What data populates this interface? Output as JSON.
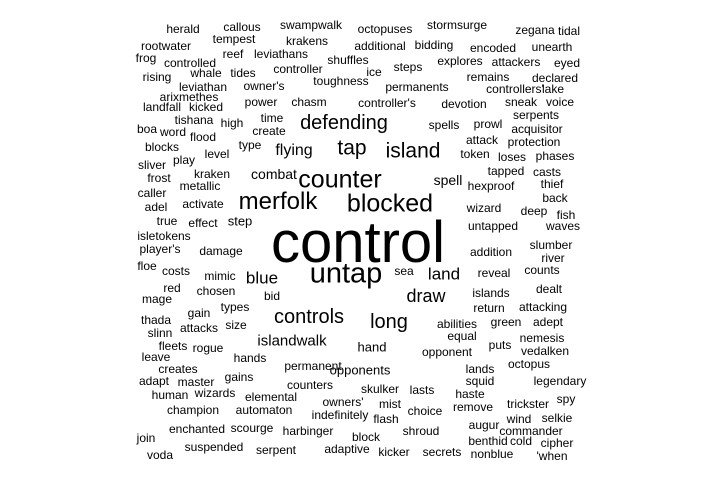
{
  "word_cloud": {
    "text_color": "#000000",
    "background_color": "#ffffff",
    "words": [
      {
        "text": "control",
        "weight": 1.0
      },
      {
        "text": "untap",
        "weight": 0.58
      },
      {
        "text": "counter",
        "weight": 0.5
      },
      {
        "text": "blocked",
        "weight": 0.5
      },
      {
        "text": "merfolk",
        "weight": 0.48
      },
      {
        "text": "island",
        "weight": 0.42
      },
      {
        "text": "tap",
        "weight": 0.42
      },
      {
        "text": "defending",
        "weight": 0.4
      },
      {
        "text": "long",
        "weight": 0.4
      },
      {
        "text": "controls",
        "weight": 0.4
      },
      {
        "text": "draw",
        "weight": 0.36
      },
      {
        "text": "blue",
        "weight": 0.33
      },
      {
        "text": "land",
        "weight": 0.33
      },
      {
        "text": "flying",
        "weight": 0.32
      },
      {
        "text": "islandwalk",
        "weight": 0.3
      },
      {
        "text": "spell",
        "weight": 0.28
      },
      {
        "text": "combat",
        "weight": 0.28
      },
      {
        "text": "hand",
        "weight": 0.26
      },
      {
        "text": "opponents",
        "weight": 0.26
      },
      {
        "text": "step",
        "weight": 0.24
      },
      {
        "text": "spells",
        "weight": 0.24
      },
      {
        "text": "wizard",
        "weight": 0.22
      },
      {
        "text": "untapped",
        "weight": 0.22
      },
      {
        "text": "reveal",
        "weight": 0.22
      },
      {
        "text": "abilities",
        "weight": 0.22
      },
      {
        "text": "permanent",
        "weight": 0.22
      },
      {
        "text": "opponent",
        "weight": 0.22
      },
      {
        "text": "damage",
        "weight": 0.2
      },
      {
        "text": "addition",
        "weight": 0.2
      },
      {
        "text": "skulker",
        "weight": 0.2
      },
      {
        "text": "lasts",
        "weight": 0.2
      },
      {
        "text": "owners'",
        "weight": 0.2
      },
      {
        "text": "counters",
        "weight": 0.2
      },
      {
        "text": "controller's",
        "weight": 0.18
      },
      {
        "text": "devotion",
        "weight": 0.18
      },
      {
        "text": "chasm",
        "weight": 0.18
      },
      {
        "text": "toughness",
        "weight": 0.18
      },
      {
        "text": "power",
        "weight": 0.18
      },
      {
        "text": "permanents",
        "weight": 0.18
      },
      {
        "text": "token",
        "weight": 0.18
      },
      {
        "text": "mimic",
        "weight": 0.16
      },
      {
        "text": "chosen",
        "weight": 0.16
      },
      {
        "text": "types",
        "weight": 0.16
      },
      {
        "text": "islands",
        "weight": 0.16
      },
      {
        "text": "return",
        "weight": 0.16
      },
      {
        "text": "hexproof",
        "weight": 0.16
      },
      {
        "text": "metallic",
        "weight": 0.16
      },
      {
        "text": "kraken",
        "weight": 0.16
      },
      {
        "text": "activate",
        "weight": 0.16
      },
      {
        "text": "effect",
        "weight": 0.16
      },
      {
        "text": "create",
        "weight": 0.16
      },
      {
        "text": "type",
        "weight": 0.16
      },
      {
        "text": "tapped",
        "weight": 0.16
      },
      {
        "text": "attack",
        "weight": 0.16
      },
      {
        "text": "casts",
        "weight": 0.14
      },
      {
        "text": "steps",
        "weight": 0.14
      },
      {
        "text": "shuffles",
        "weight": 0.14
      },
      {
        "text": "hands",
        "weight": 0.14
      },
      {
        "text": "elemental",
        "weight": 0.14
      },
      {
        "text": "automaton",
        "weight": 0.14
      },
      {
        "text": "champion",
        "weight": 0.14
      },
      {
        "text": "attacks",
        "weight": 0.14
      },
      {
        "text": "rogue",
        "weight": 0.14
      },
      {
        "text": "gains",
        "weight": 0.14
      },
      {
        "text": "master",
        "weight": 0.14
      },
      {
        "text": "wizards",
        "weight": 0.14
      },
      {
        "text": "harbinger",
        "weight": 0.14
      },
      {
        "text": "shroud",
        "weight": 0.14
      },
      {
        "text": "choice",
        "weight": 0.14
      },
      {
        "text": "haste",
        "weight": 0.14
      },
      {
        "text": "lands",
        "weight": 0.14
      },
      {
        "text": "puts",
        "weight": 0.14
      },
      {
        "text": "squid",
        "weight": 0.14
      },
      {
        "text": "remove",
        "weight": 0.14
      },
      {
        "text": "augur",
        "weight": 0.14
      },
      {
        "text": "trickster",
        "weight": 0.14
      },
      {
        "text": "legendary",
        "weight": 0.14
      },
      {
        "text": "octopus",
        "weight": 0.14
      },
      {
        "text": "vedalken",
        "weight": 0.14
      },
      {
        "text": "nemesis",
        "weight": 0.14
      },
      {
        "text": "adept",
        "weight": 0.14
      },
      {
        "text": "green",
        "weight": 0.14
      },
      {
        "text": "attacking",
        "weight": 0.14
      },
      {
        "text": "dealt",
        "weight": 0.14
      },
      {
        "text": "counts",
        "weight": 0.14
      },
      {
        "text": "river",
        "weight": 0.14
      },
      {
        "text": "slumber",
        "weight": 0.14
      },
      {
        "text": "waves",
        "weight": 0.14
      },
      {
        "text": "deep",
        "weight": 0.14
      },
      {
        "text": "fish",
        "weight": 0.14
      },
      {
        "text": "back",
        "weight": 0.14
      },
      {
        "text": "thief",
        "weight": 0.14
      },
      {
        "text": "phases",
        "weight": 0.14
      },
      {
        "text": "loses",
        "weight": 0.14
      },
      {
        "text": "protection",
        "weight": 0.14
      },
      {
        "text": "acquisitor",
        "weight": 0.14
      },
      {
        "text": "serpents",
        "weight": 0.14
      },
      {
        "text": "prowl",
        "weight": 0.14
      },
      {
        "text": "sneak",
        "weight": 0.14
      },
      {
        "text": "voice",
        "weight": 0.14
      },
      {
        "text": "controllers'",
        "weight": 0.14
      },
      {
        "text": "lake",
        "weight": 0.14
      },
      {
        "text": "remains",
        "weight": 0.14
      },
      {
        "text": "declared",
        "weight": 0.14
      },
      {
        "text": "eyed",
        "weight": 0.14
      },
      {
        "text": "attackers",
        "weight": 0.14
      },
      {
        "text": "explores",
        "weight": 0.14
      },
      {
        "text": "encoded",
        "weight": 0.14
      },
      {
        "text": "unearth",
        "weight": 0.14
      },
      {
        "text": "bidding",
        "weight": 0.14
      },
      {
        "text": "stormsurge",
        "weight": 0.14
      },
      {
        "text": "zegana",
        "weight": 0.14
      },
      {
        "text": "tidal",
        "weight": 0.14
      },
      {
        "text": "octopuses",
        "weight": 0.14
      },
      {
        "text": "swampwalk",
        "weight": 0.14
      },
      {
        "text": "callous",
        "weight": 0.14
      },
      {
        "text": "herald",
        "weight": 0.14
      },
      {
        "text": "tempest",
        "weight": 0.14
      },
      {
        "text": "krakens",
        "weight": 0.14
      },
      {
        "text": "additional",
        "weight": 0.14
      },
      {
        "text": "reef",
        "weight": 0.14
      },
      {
        "text": "leviathans",
        "weight": 0.14
      },
      {
        "text": "rootwater",
        "weight": 0.14
      },
      {
        "text": "frog",
        "weight": 0.14
      },
      {
        "text": "controlled",
        "weight": 0.14
      },
      {
        "text": "rising",
        "weight": 0.14
      },
      {
        "text": "whale",
        "weight": 0.14
      },
      {
        "text": "tides",
        "weight": 0.14
      },
      {
        "text": "controller",
        "weight": 0.14
      },
      {
        "text": "ice",
        "weight": 0.14
      },
      {
        "text": "leviathan",
        "weight": 0.14
      },
      {
        "text": "owner's",
        "weight": 0.14
      },
      {
        "text": "arixmethes",
        "weight": 0.14
      },
      {
        "text": "landfall",
        "weight": 0.14
      },
      {
        "text": "kicked",
        "weight": 0.14
      },
      {
        "text": "tishana",
        "weight": 0.14
      },
      {
        "text": "high",
        "weight": 0.14
      },
      {
        "text": "time",
        "weight": 0.14
      },
      {
        "text": "boa",
        "weight": 0.14
      },
      {
        "text": "word",
        "weight": 0.14
      },
      {
        "text": "flood",
        "weight": 0.14
      },
      {
        "text": "blocks",
        "weight": 0.14
      },
      {
        "text": "level",
        "weight": 0.14
      },
      {
        "text": "play",
        "weight": 0.14
      },
      {
        "text": "sliver",
        "weight": 0.14
      },
      {
        "text": "frost",
        "weight": 0.14
      },
      {
        "text": "caller",
        "weight": 0.14
      },
      {
        "text": "adel",
        "weight": 0.14
      },
      {
        "text": "true",
        "weight": 0.14
      },
      {
        "text": "isletokens",
        "weight": 0.14
      },
      {
        "text": "player's",
        "weight": 0.14
      },
      {
        "text": "floe",
        "weight": 0.14
      },
      {
        "text": "costs",
        "weight": 0.14
      },
      {
        "text": "mage",
        "weight": 0.14
      },
      {
        "text": "red",
        "weight": 0.14
      },
      {
        "text": "gain",
        "weight": 0.14
      },
      {
        "text": "bid",
        "weight": 0.14
      },
      {
        "text": "thada",
        "weight": 0.14
      },
      {
        "text": "size",
        "weight": 0.14
      },
      {
        "text": "slinn",
        "weight": 0.14
      },
      {
        "text": "fleets",
        "weight": 0.14
      },
      {
        "text": "leave",
        "weight": 0.14
      },
      {
        "text": "creates",
        "weight": 0.14
      },
      {
        "text": "adapt",
        "weight": 0.14
      },
      {
        "text": "human",
        "weight": 0.14
      },
      {
        "text": "enchanted",
        "weight": 0.14
      },
      {
        "text": "scourge",
        "weight": 0.14
      },
      {
        "text": "join",
        "weight": 0.14
      },
      {
        "text": "voda",
        "weight": 0.14
      },
      {
        "text": "suspended",
        "weight": 0.14
      },
      {
        "text": "serpent",
        "weight": 0.14
      },
      {
        "text": "adaptive",
        "weight": 0.14
      },
      {
        "text": "block",
        "weight": 0.14
      },
      {
        "text": "kicker",
        "weight": 0.14
      },
      {
        "text": "secrets",
        "weight": 0.14
      },
      {
        "text": "nonblue",
        "weight": 0.14
      },
      {
        "text": "'when",
        "weight": 0.14
      },
      {
        "text": "indefinitely",
        "weight": 0.14
      },
      {
        "text": "flash",
        "weight": 0.14
      },
      {
        "text": "mist",
        "weight": 0.14
      },
      {
        "text": "equal",
        "weight": 0.14
      },
      {
        "text": "sea",
        "weight": 0.14
      },
      {
        "text": "spy",
        "weight": 0.14
      },
      {
        "text": "wind",
        "weight": 0.14
      },
      {
        "text": "selkie",
        "weight": 0.14
      },
      {
        "text": "commander",
        "weight": 0.14
      },
      {
        "text": "benthid",
        "weight": 0.14
      },
      {
        "text": "cold",
        "weight": 0.14
      },
      {
        "text": "cipher",
        "weight": 0.14
      }
    ]
  }
}
